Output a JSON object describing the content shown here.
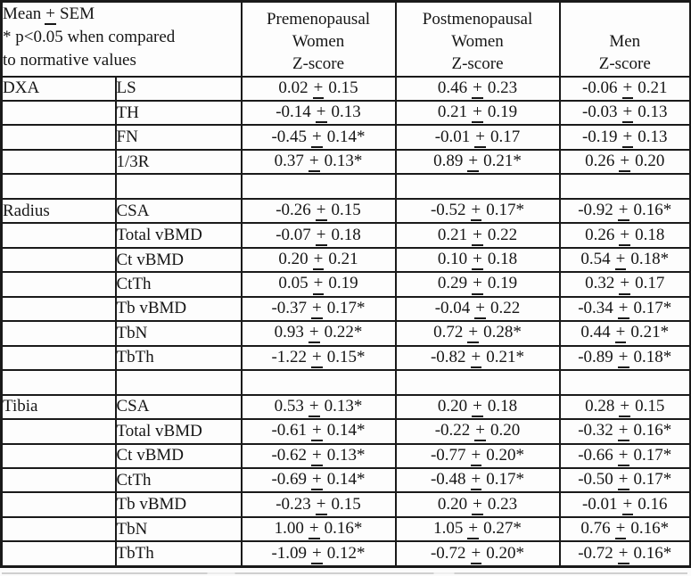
{
  "page": {
    "background": "#fbfbfb",
    "text_color": "#161616",
    "border_color": "#1a1a1a"
  },
  "table": {
    "note": {
      "lines": [
        "Mean ± SEM",
        "* p<0.05 when compared",
        "to normative values"
      ]
    },
    "columns": [
      {
        "id": "premenopausal-women",
        "lines": [
          "Premenopausal",
          "Women",
          "Z-score"
        ]
      },
      {
        "id": "postmenopausal-women",
        "lines": [
          "Postmenopausal",
          "Women",
          "Z-score"
        ]
      },
      {
        "id": "men",
        "lines": [
          "Men",
          "Z-score"
        ]
      }
    ],
    "sections": [
      {
        "name": "DXA",
        "spacer_after": true,
        "rows": [
          {
            "site": "LS",
            "values": [
              "0.02 ± 0.15",
              "0.46 ± 0.23",
              "-0.06 ± 0.21"
            ]
          },
          {
            "site": "TH",
            "values": [
              "-0.14 ± 0.13",
              "0.21 ± 0.19",
              "-0.03 ± 0.13"
            ]
          },
          {
            "site": "FN",
            "values": [
              "-0.45 ± 0.14*",
              "-0.01 ± 0.17",
              "-0.19 ± 0.13"
            ]
          },
          {
            "site": "1/3R",
            "values": [
              "0.37 ± 0.13*",
              "0.89 ± 0.21*",
              "0.26 ± 0.20"
            ]
          }
        ]
      },
      {
        "name": "Radius",
        "spacer_after": true,
        "rows": [
          {
            "site": "CSA",
            "values": [
              "-0.26 ± 0.15",
              "-0.52 ± 0.17*",
              "-0.92 ± 0.16*"
            ]
          },
          {
            "site": "Total vBMD",
            "values": [
              "-0.07 ± 0.18",
              "0.21 ± 0.22",
              "0.26 ± 0.18"
            ]
          },
          {
            "site": "Ct vBMD",
            "values": [
              "0.20 ± 0.21",
              "0.10 ± 0.18",
              "0.54 ± 0.18*"
            ]
          },
          {
            "site": "CtTh",
            "values": [
              "0.05 ± 0.19",
              "0.29 ± 0.19",
              "0.32 ± 0.17"
            ]
          },
          {
            "site": "Tb vBMD",
            "values": [
              "-0.37 ± 0.17*",
              "-0.04 ± 0.22",
              "-0.34 ± 0.17*"
            ]
          },
          {
            "site": "TbN",
            "values": [
              "0.93 ± 0.22*",
              "0.72 ± 0.28*",
              "0.44 ± 0.21*"
            ]
          },
          {
            "site": "TbTh",
            "values": [
              "-1.22 ± 0.15*",
              "-0.82 ± 0.21*",
              "-0.89 ± 0.18*"
            ]
          }
        ]
      },
      {
        "name": "Tibia",
        "spacer_after": false,
        "rows": [
          {
            "site": "CSA",
            "values": [
              "0.53 ± 0.13*",
              "0.20 ± 0.18",
              "0.28 ± 0.15"
            ]
          },
          {
            "site": "Total vBMD",
            "values": [
              "-0.61 ± 0.14*",
              "-0.22 ± 0.20",
              "-0.32 ± 0.16*"
            ]
          },
          {
            "site": "Ct vBMD",
            "values": [
              "-0.62 ± 0.13*",
              "-0.77 ± 0.20*",
              "-0.66 ± 0.17*"
            ]
          },
          {
            "site": "CtTh",
            "values": [
              "-0.69 ± 0.14*",
              "-0.48 ± 0.17*",
              "-0.50 ± 0.17*"
            ]
          },
          {
            "site": "Tb vBMD",
            "values": [
              "-0.23 ± 0.15",
              "0.20 ± 0.23",
              "-0.01 ± 0.16"
            ]
          },
          {
            "site": "TbN",
            "values": [
              "1.00 ± 0.16*",
              "1.05 ± 0.27*",
              "0.76 ± 0.16*"
            ]
          },
          {
            "site": "TbTh",
            "values": [
              "-1.09 ± 0.12*",
              "-0.72 ± 0.20*",
              "-0.72 ± 0.16*"
            ]
          }
        ]
      }
    ]
  }
}
